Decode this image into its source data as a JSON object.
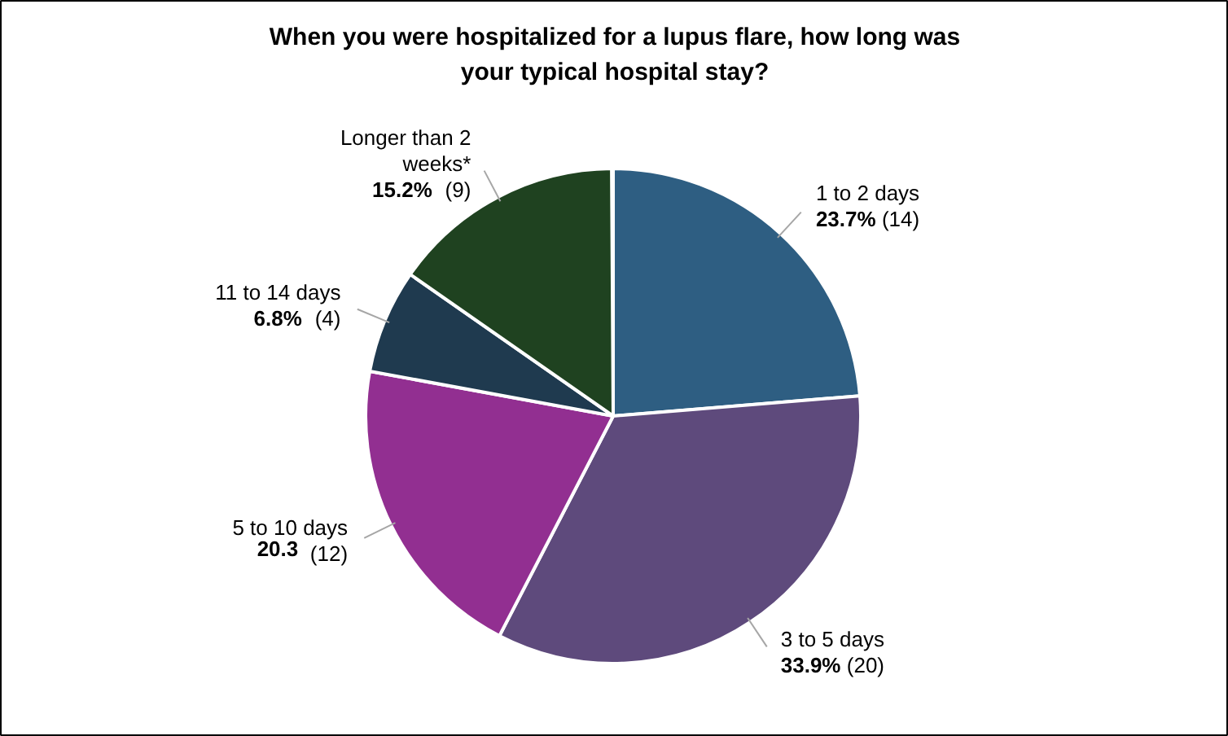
{
  "chart_data": {
    "type": "pie",
    "title": "When you were hospitalized for a lupus flare, how long was your typical hospital stay?",
    "categories": [
      "1 to 2 days",
      "3 to 5 days",
      "5 to 10 days",
      "11 to 14 days",
      "Longer than 2 weeks*"
    ],
    "values": [
      23.7,
      33.9,
      20.3,
      6.8,
      15.2
    ],
    "value_labels": [
      "23.7% (14)",
      "33.9% (20)",
      "20.3 (12)",
      "6.8% (4)",
      "15.2% (9)"
    ],
    "colors": [
      "#2e5e82",
      "#5e4a7c",
      "#922f91",
      "#1f3a4f",
      "#1f4220"
    ]
  }
}
